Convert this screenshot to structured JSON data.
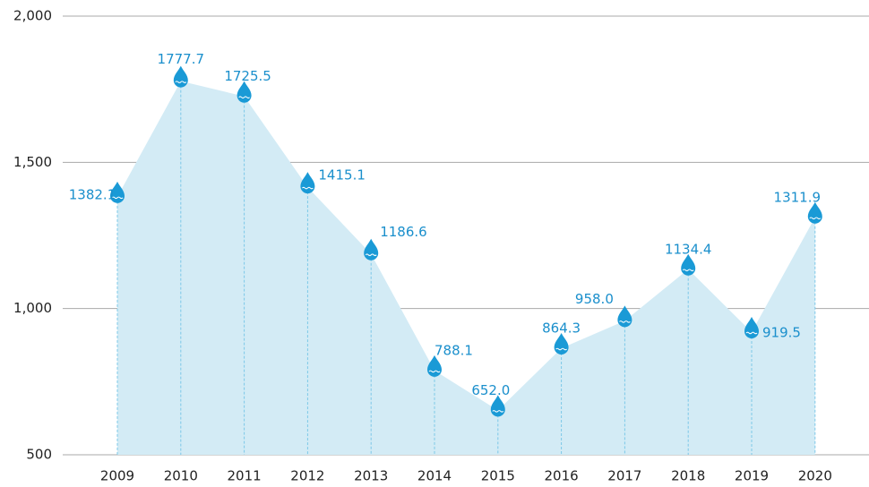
{
  "chart_data": {
    "type": "area",
    "categories": [
      "2009",
      "2010",
      "2011",
      "2012",
      "2013",
      "2014",
      "2015",
      "2016",
      "2017",
      "2018",
      "2019",
      "2020"
    ],
    "values": [
      1382.1,
      1777.7,
      1725.5,
      1415.1,
      1186.6,
      788.1,
      652.0,
      864.3,
      958.0,
      1134.4,
      919.5,
      1311.9
    ],
    "value_labels": [
      "1382.1",
      "1777.7",
      "1725.5",
      "1415.1",
      "1186.6",
      "788.1",
      "652.0",
      "864.3",
      "958.0",
      "1134.4",
      "919.5",
      "1311.9"
    ],
    "color": "#1a9ad6",
    "area_color": "#d3ebf5",
    "ylim": [
      500,
      2000
    ],
    "yticks": [
      500,
      {
        "value": 1000,
        "label": "1,000"
      },
      {
        "value": 1500,
        "label": "1,500"
      },
      {
        "value": 2000,
        "label": "2,000"
      }
    ],
    "grid": true
  }
}
